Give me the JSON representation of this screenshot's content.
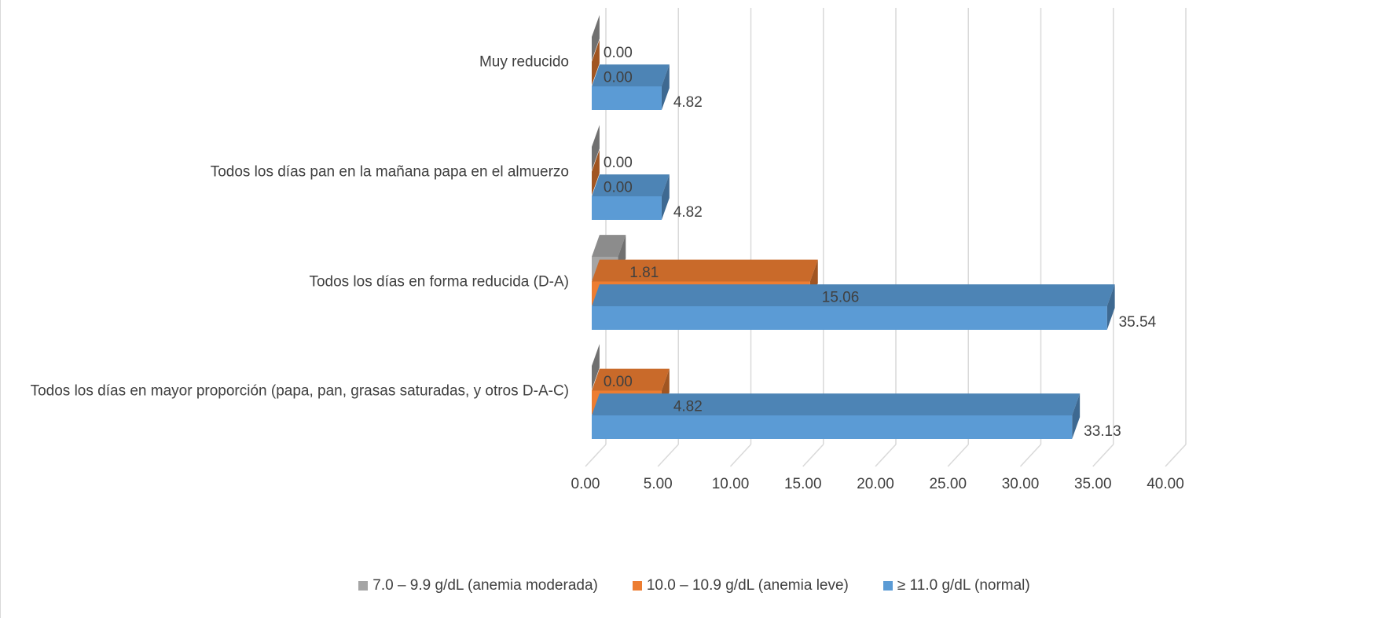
{
  "chart_data": {
    "type": "bar",
    "orientation": "horizontal",
    "style": "3d-clustered",
    "categories": [
      "Muy reducido",
      "Todos los días pan en la mañana papa en el almuerzo",
      "Todos los días en forma reducida (D-A)",
      "Todos los días en mayor proporción (papa, pan, grasas saturadas, y otros D-A-C)"
    ],
    "series": [
      {
        "name": "7.0 – 9.9 g/dL (anemia moderada)",
        "color": "#a5a5a5",
        "values": [
          0.0,
          0.0,
          1.81,
          0.0
        ],
        "labels": [
          "0.00",
          "0.00",
          "1.81",
          "0.00"
        ]
      },
      {
        "name": "10.0 – 10.9 g/dL (anemia leve)",
        "color": "#ed7d31",
        "values": [
          0.0,
          0.0,
          15.06,
          4.82
        ],
        "labels": [
          "0.00",
          "0.00",
          "15.06",
          "4.82"
        ]
      },
      {
        "name": "≥ 11.0 g/dL (normal)",
        "color": "#5b9bd5",
        "values": [
          4.82,
          4.82,
          35.54,
          33.13
        ],
        "labels": [
          "4.82",
          "4.82",
          "35.54",
          "33.13"
        ]
      }
    ],
    "xlim": [
      0,
      40
    ],
    "xticks": [
      "0.00",
      "5.00",
      "10.00",
      "15.00",
      "20.00",
      "25.00",
      "30.00",
      "35.00",
      "40.00"
    ],
    "grid": true,
    "legend_position": "bottom"
  }
}
